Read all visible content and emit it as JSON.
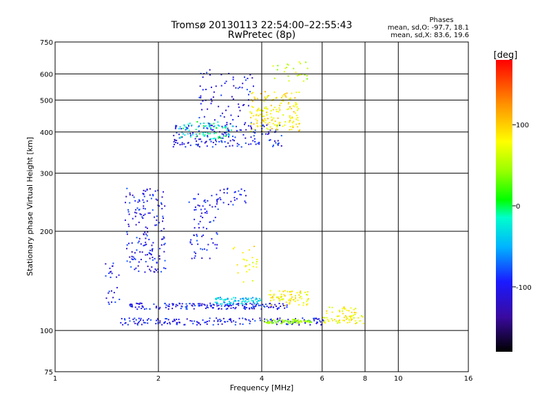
{
  "chart_data": {
    "type": "scatter",
    "title": "Tromsø 20130113 22:54:00–22:55:43",
    "subtitle": "RwPretec (8p)",
    "xlabel": "Frequency [MHz]",
    "ylabel": "Stationary phase Virtual Height [km]",
    "x_scale": "log",
    "y_scale": "log",
    "xlim": [
      1,
      16
    ],
    "ylim": [
      75,
      750
    ],
    "x_ticks": [
      1,
      2,
      4,
      6,
      8,
      10,
      16
    ],
    "x_tick_labels": [
      "1",
      "2",
      "4",
      "6",
      "8",
      "10",
      "16"
    ],
    "y_ticks": [
      75,
      100,
      200,
      300,
      400,
      500,
      600,
      750
    ],
    "y_tick_labels": [
      "75",
      "100",
      "200",
      "300",
      "400",
      "500",
      "600",
      "750"
    ],
    "grid": true,
    "stats": {
      "heading": "Phases",
      "line_o": "mean, sd,O: -97.7, 18.1",
      "line_x": "mean, sd,X:  83.6, 19.6"
    },
    "colorbar": {
      "label": "[deg]",
      "range": [
        -180,
        180
      ],
      "ticks": [
        100,
        0,
        -100
      ],
      "tick_labels": [
        "100",
        "0",
        "-100"
      ]
    },
    "traces": [
      {
        "x_range": [
          1.55,
          6.2
        ],
        "y_range": [
          104,
          109
        ],
        "phase": -100,
        "density": "high"
      },
      {
        "x_range": [
          4.0,
          5.6
        ],
        "y_range": [
          105,
          108
        ],
        "phase": 40,
        "density": "medium"
      },
      {
        "x_range": [
          6.0,
          8.0
        ],
        "y_range": [
          105,
          118
        ],
        "phase": 80,
        "density": "medium"
      },
      {
        "x_range": [
          1.65,
          4.8
        ],
        "y_range": [
          116,
          121
        ],
        "phase": -100,
        "density": "high"
      },
      {
        "x_range": [
          2.9,
          4.0
        ],
        "y_range": [
          120,
          126
        ],
        "phase": -40,
        "density": "medium"
      },
      {
        "x_range": [
          4.2,
          5.5
        ],
        "y_range": [
          119,
          132
        ],
        "phase": 85,
        "density": "medium"
      },
      {
        "x_range": [
          1.4,
          1.55
        ],
        "y_range": [
          120,
          160
        ],
        "phase": -100,
        "density": "low"
      },
      {
        "x_range": [
          1.6,
          2.1
        ],
        "y_range": [
          150,
          270
        ],
        "phase": -100,
        "density": "high"
      },
      {
        "x_range": [
          2.45,
          3.0
        ],
        "y_range": [
          165,
          260
        ],
        "phase": -100,
        "density": "medium"
      },
      {
        "x_range": [
          2.2,
          4.6
        ],
        "y_range": [
          360,
          420
        ],
        "phase": -100,
        "density": "high"
      },
      {
        "x_range": [
          2.3,
          3.3
        ],
        "y_range": [
          380,
          430
        ],
        "phase": -20,
        "density": "medium"
      },
      {
        "x_range": [
          2.6,
          3.8
        ],
        "y_range": [
          420,
          620
        ],
        "phase": -100,
        "density": "medium"
      },
      {
        "x_range": [
          3.7,
          5.2
        ],
        "y_range": [
          400,
          530
        ],
        "phase": 90,
        "density": "high"
      },
      {
        "x_range": [
          4.3,
          5.5
        ],
        "y_range": [
          560,
          660
        ],
        "phase": 60,
        "density": "low"
      },
      {
        "x_range": [
          3.3,
          3.9
        ],
        "y_range": [
          140,
          180
        ],
        "phase": 80,
        "density": "low"
      },
      {
        "x_range": [
          3.0,
          3.6
        ],
        "y_range": [
          240,
          270
        ],
        "phase": -100,
        "density": "low"
      }
    ]
  }
}
